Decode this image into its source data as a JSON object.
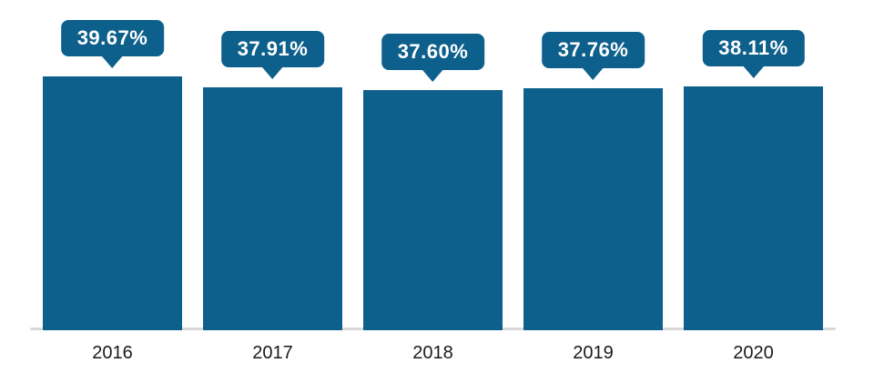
{
  "chart_data": {
    "type": "bar",
    "title": "",
    "xlabel": "",
    "ylabel": "",
    "categories": [
      "2016",
      "2017",
      "2018",
      "2019",
      "2020"
    ],
    "values": [
      39.67,
      37.91,
      37.6,
      37.76,
      38.11
    ],
    "labels": [
      "39.67%",
      "37.91%",
      "37.60%",
      "37.76%",
      "38.11%"
    ],
    "ylim": [
      0,
      42
    ],
    "grid": false,
    "legend": "none",
    "data_label_style": "callout-tooltip-above-bar",
    "colors": {
      "bar": "#0e608c",
      "callout_background": "#0e608c",
      "callout_text": "#ffffff",
      "axis_line": "#d9d9d9",
      "category_label": "#1a1a1a"
    }
  }
}
